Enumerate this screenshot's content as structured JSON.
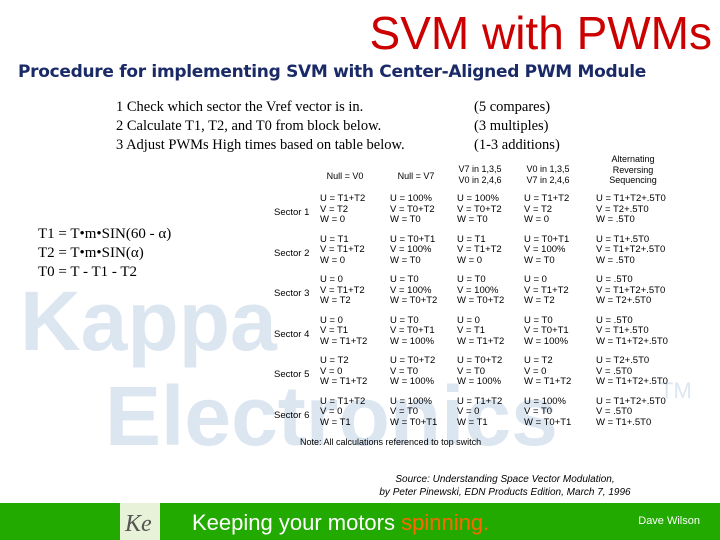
{
  "title": "SVM with PWMs",
  "subtitle": "Procedure for implementing SVM with Center-Aligned PWM Module",
  "steps": [
    {
      "num": "1",
      "text": "Check which sector the Vref vector is in."
    },
    {
      "num": "2",
      "text": "Calculate T1, T2, and T0 from block below."
    },
    {
      "num": "3",
      "text": "Adjust PWMs High times based on table below."
    }
  ],
  "notes": [
    "(5 compares)",
    "(3 multiples)",
    "(1-3 additions)"
  ],
  "formulas": [
    "T1 = T•m•SIN(60 - α)",
    "T2 = T•m•SIN(α)",
    "T0 = T - T1 - T2"
  ],
  "table": {
    "headers": [
      {
        "lines": [
          "Null = V0"
        ]
      },
      {
        "lines": [
          "Null = V7"
        ]
      },
      {
        "lines": [
          "V7 in 1,3,5",
          "V0 in 2,4,6"
        ]
      },
      {
        "lines": [
          "V0 in 1,3,5",
          "V7 in 2,4,6"
        ]
      },
      {
        "lines": [
          "Alternating",
          "Reversing",
          "Sequencing"
        ]
      }
    ],
    "sectors": [
      {
        "label": "Sector 1",
        "cells": [
          [
            "U = T1+T2",
            "V = T2",
            "W = 0"
          ],
          [
            "U = 100%",
            "V = T0+T2",
            "W = T0"
          ],
          [
            "U = 100%",
            "V = T0+T2",
            "W = T0"
          ],
          [
            "U = T1+T2",
            "V = T2",
            "W = 0"
          ],
          [
            "U = T1+T2+.5T0",
            "V = T2+.5T0",
            "W = .5T0"
          ]
        ]
      },
      {
        "label": "Sector 2",
        "cells": [
          [
            "U = T1",
            "V = T1+T2",
            "W = 0"
          ],
          [
            "U = T0+T1",
            "V = 100%",
            "W = T0"
          ],
          [
            "U = T1",
            "V = T1+T2",
            "W = 0"
          ],
          [
            "U = T0+T1",
            "V = 100%",
            "W = T0"
          ],
          [
            "U = T1+.5T0",
            "V = T1+T2+.5T0",
            "W = .5T0"
          ]
        ]
      },
      {
        "label": "Sector 3",
        "cells": [
          [
            "U = 0",
            "V = T1+T2",
            "W = T2"
          ],
          [
            "U = T0",
            "V = 100%",
            "W = T0+T2"
          ],
          [
            "U = T0",
            "V = 100%",
            "W = T0+T2"
          ],
          [
            "U = 0",
            "V = T1+T2",
            "W = T2"
          ],
          [
            "U = .5T0",
            "V = T1+T2+.5T0",
            "W = T2+.5T0"
          ]
        ]
      },
      {
        "label": "Sector 4",
        "cells": [
          [
            "U = 0",
            "V = T1",
            "W = T1+T2"
          ],
          [
            "U = T0",
            "V = T0+T1",
            "W = 100%"
          ],
          [
            "U = 0",
            "V = T1",
            "W = T1+T2"
          ],
          [
            "U = T0",
            "V = T0+T1",
            "W = 100%"
          ],
          [
            "U = .5T0",
            "V = T1+.5T0",
            "W = T1+T2+.5T0"
          ]
        ]
      },
      {
        "label": "Sector 5",
        "cells": [
          [
            "U = T2",
            "V = 0",
            "W = T1+T2"
          ],
          [
            "U = T0+T2",
            "V = T0",
            "W = 100%"
          ],
          [
            "U = T0+T2",
            "V = T0",
            "W = 100%"
          ],
          [
            "U = T2",
            "V = 0",
            "W = T1+T2"
          ],
          [
            "U = T2+.5T0",
            "V = .5T0",
            "W = T1+T2+.5T0"
          ]
        ]
      },
      {
        "label": "Sector 6",
        "cells": [
          [
            "U = T1+T2",
            "V = 0",
            "W = T1"
          ],
          [
            "U = 100%",
            "V = T0",
            "W = T0+T1"
          ],
          [
            "U = T1+T2",
            "V = 0",
            "W = T1"
          ],
          [
            "U = 100%",
            "V = T0",
            "W = T0+T1"
          ],
          [
            "U = T1+T2+.5T0",
            "V = .5T0",
            "W = T1+.5T0"
          ]
        ]
      }
    ]
  },
  "footnote": "Note:  All calculations referenced to top switch",
  "source": [
    "Source:  Understanding Space Vector Modulation,",
    "by Peter Pinewski, EDN Products Edition, March 7, 1996"
  ],
  "footer": {
    "tagline_main": "Keeping your motors ",
    "tagline_accent": "spinning.",
    "author": "Dave Wilson",
    "logo_text": "Ke",
    "bg_color": "#22aa00",
    "accent_color": "#ff6600"
  },
  "watermark": {
    "line1": "Kappa",
    "line2": "Electronics",
    "mark": "TM"
  },
  "colors": {
    "title": "#cc0000",
    "subtitle": "#1a2a66",
    "watermark": "#d6e2ef"
  }
}
